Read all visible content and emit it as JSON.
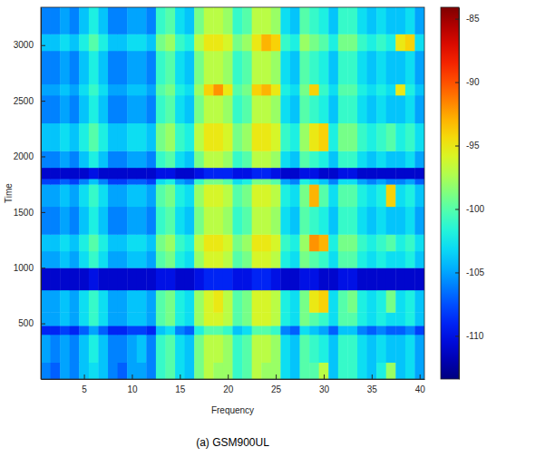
{
  "chart_data": {
    "type": "heatmap",
    "title": "(a) GSM900UL",
    "x_label": "Frequency",
    "y_label": "Time",
    "x": [
      1,
      2,
      3,
      4,
      5,
      6,
      7,
      8,
      9,
      10,
      11,
      12,
      13,
      14,
      15,
      16,
      17,
      18,
      19,
      20,
      21,
      22,
      23,
      24,
      25,
      26,
      27,
      28,
      29,
      30,
      31,
      32,
      33,
      34,
      35,
      36,
      37,
      38,
      39,
      40
    ],
    "time_bins": [
      0,
      150,
      400,
      480,
      600,
      800,
      1000,
      1150,
      1300,
      1550,
      1750,
      1800,
      1900,
      2050,
      2300,
      2550,
      2650,
      2950,
      3100,
      3340
    ],
    "xlim": [
      0.5,
      40.5
    ],
    "xticks": [
      5,
      10,
      15,
      20,
      25,
      30,
      35,
      40
    ],
    "ylim": [
      0,
      3340
    ],
    "yticks": [
      500,
      1000,
      1500,
      2000,
      2500,
      3000
    ],
    "color_range": [
      -113.4,
      -84.1
    ],
    "color_ticks": [
      -110,
      -105,
      -100,
      -95,
      -90,
      -85
    ],
    "values": [
      [
        -106,
        -107,
        -105,
        -106,
        -104,
        -103,
        -104,
        -106,
        -107,
        -105,
        -105,
        -106,
        -101,
        -100,
        -103,
        -104,
        -99,
        -97,
        -98,
        -98,
        -101,
        -100,
        -97,
        -98,
        -98,
        -103,
        -104,
        -100,
        -100,
        -97,
        -104,
        -101,
        -101,
        -103,
        -104,
        -102,
        -98,
        -104,
        -103,
        -105
      ],
      [
        -105,
        -106,
        -105,
        -106,
        -104,
        -102,
        -104,
        -106,
        -106,
        -105,
        -104,
        -106,
        -101,
        -100,
        -103,
        -104,
        -99,
        -97,
        -97,
        -98,
        -101,
        -100,
        -97,
        -97,
        -98,
        -103,
        -104,
        -100,
        -101,
        -102,
        -104,
        -101,
        -101,
        -103,
        -104,
        -103,
        -104,
        -104,
        -103,
        -105
      ],
      [
        -109,
        -109,
        -108,
        -109,
        -107,
        -105,
        -107,
        -109,
        -109,
        -108,
        -108,
        -109,
        -104,
        -103,
        -106,
        -107,
        -102,
        -100,
        -100,
        -101,
        -104,
        -103,
        -100,
        -100,
        -101,
        -106,
        -107,
        -103,
        -104,
        -105,
        -107,
        -104,
        -104,
        -106,
        -107,
        -106,
        -107,
        -107,
        -106,
        -108
      ],
      [
        -105,
        -105,
        -104,
        -105,
        -103,
        -101,
        -103,
        -105,
        -105,
        -104,
        -104,
        -105,
        -100,
        -99,
        -102,
        -103,
        -98,
        -96,
        -96,
        -97,
        -100,
        -99,
        -96,
        -96,
        -97,
        -102,
        -103,
        -99,
        -100,
        -101,
        -103,
        -100,
        -100,
        -102,
        -103,
        -102,
        -103,
        -103,
        -102,
        -104
      ],
      [
        -105,
        -105,
        -104,
        -105,
        -103,
        -101,
        -103,
        -105,
        -105,
        -104,
        -104,
        -105,
        -100,
        -99,
        -102,
        -103,
        -98,
        -96,
        -95,
        -97,
        -100,
        -99,
        -96,
        -96,
        -97,
        -102,
        -103,
        -99,
        -95,
        -94,
        -103,
        -100,
        -99,
        -102,
        -103,
        -102,
        -99,
        -103,
        -102,
        -104
      ],
      [
        -111,
        -111,
        -111,
        -111,
        -111,
        -110,
        -111,
        -111,
        -111,
        -111,
        -111,
        -111,
        -110,
        -110,
        -111,
        -111,
        -110,
        -109,
        -109,
        -109,
        -110,
        -110,
        -109,
        -109,
        -110,
        -111,
        -111,
        -110,
        -110,
        -111,
        -111,
        -110,
        -110,
        -111,
        -111,
        -111,
        -111,
        -111,
        -111,
        -111
      ],
      [
        -105,
        -105,
        -104,
        -105,
        -103,
        -101,
        -103,
        -105,
        -105,
        -104,
        -104,
        -105,
        -100,
        -99,
        -102,
        -103,
        -98,
        -96,
        -96,
        -97,
        -100,
        -99,
        -96,
        -96,
        -97,
        -102,
        -103,
        -99,
        -100,
        -101,
        -103,
        -100,
        -100,
        -102,
        -103,
        -102,
        -103,
        -103,
        -102,
        -104
      ],
      [
        -104,
        -104,
        -103,
        -104,
        -102,
        -100,
        -102,
        -104,
        -104,
        -103,
        -103,
        -104,
        -99,
        -98,
        -101,
        -102,
        -97,
        -95,
        -95,
        -96,
        -99,
        -98,
        -95,
        -95,
        -96,
        -101,
        -102,
        -98,
        -92,
        -93,
        -102,
        -99,
        -99,
        -101,
        -102,
        -101,
        -100,
        -102,
        -101,
        -103
      ],
      [
        -106,
        -106,
        -105,
        -106,
        -104,
        -102,
        -104,
        -106,
        -106,
        -105,
        -105,
        -106,
        -101,
        -100,
        -103,
        -104,
        -99,
        -97,
        -97,
        -98,
        -101,
        -100,
        -97,
        -97,
        -98,
        -103,
        -104,
        -100,
        -101,
        -102,
        -104,
        -101,
        -101,
        -103,
        -104,
        -103,
        -104,
        -104,
        -103,
        -105
      ],
      [
        -105,
        -105,
        -104,
        -105,
        -103,
        -101,
        -103,
        -105,
        -105,
        -104,
        -104,
        -105,
        -100,
        -99,
        -102,
        -103,
        -98,
        -96,
        -96,
        -97,
        -100,
        -99,
        -96,
        -96,
        -97,
        -102,
        -103,
        -99,
        -93,
        -100,
        -103,
        -100,
        -100,
        -102,
        -103,
        -102,
        -94,
        -103,
        -102,
        -104
      ],
      [
        -108,
        -108,
        -107,
        -108,
        -106,
        -104,
        -106,
        -108,
        -108,
        -107,
        -107,
        -108,
        -103,
        -102,
        -105,
        -106,
        -101,
        -99,
        -99,
        -100,
        -103,
        -102,
        -99,
        -99,
        -100,
        -105,
        -106,
        -102,
        -103,
        -104,
        -106,
        -103,
        -103,
        -105,
        -106,
        -105,
        -106,
        -106,
        -105,
        -107
      ],
      [
        -111,
        -111,
        -111,
        -111,
        -111,
        -110,
        -111,
        -111,
        -111,
        -111,
        -111,
        -111,
        -110,
        -110,
        -111,
        -111,
        -110,
        -109,
        -109,
        -109,
        -110,
        -110,
        -109,
        -109,
        -110,
        -111,
        -111,
        -110,
        -110,
        -111,
        -111,
        -110,
        -110,
        -111,
        -111,
        -111,
        -111,
        -111,
        -111,
        -111
      ],
      [
        -106,
        -106,
        -105,
        -106,
        -104,
        -102,
        -104,
        -106,
        -106,
        -105,
        -105,
        -106,
        -101,
        -100,
        -103,
        -104,
        -99,
        -97,
        -97,
        -98,
        -101,
        -100,
        -97,
        -97,
        -98,
        -103,
        -104,
        -100,
        -101,
        -102,
        -104,
        -101,
        -101,
        -103,
        -104,
        -103,
        -104,
        -104,
        -103,
        -105
      ],
      [
        -104,
        -104,
        -103,
        -104,
        -102,
        -100,
        -102,
        -104,
        -104,
        -103,
        -103,
        -104,
        -99,
        -98,
        -101,
        -102,
        -97,
        -95,
        -95,
        -96,
        -99,
        -98,
        -95,
        -95,
        -96,
        -101,
        -102,
        -98,
        -95,
        -94,
        -102,
        -99,
        -99,
        -101,
        -102,
        -101,
        -100,
        -102,
        -101,
        -103
      ],
      [
        -106,
        -106,
        -105,
        -106,
        -104,
        -102,
        -104,
        -106,
        -106,
        -105,
        -105,
        -106,
        -101,
        -100,
        -103,
        -104,
        -99,
        -97,
        -97,
        -98,
        -101,
        -100,
        -97,
        -97,
        -98,
        -103,
        -104,
        -100,
        -101,
        -102,
        -104,
        -101,
        -101,
        -103,
        -104,
        -103,
        -104,
        -104,
        -103,
        -105
      ],
      [
        -105,
        -105,
        -104,
        -105,
        -103,
        -101,
        -103,
        -105,
        -105,
        -104,
        -104,
        -105,
        -100,
        -99,
        -102,
        -103,
        -98,
        -94,
        -92,
        -95,
        -100,
        -99,
        -94,
        -93,
        -95,
        -102,
        -103,
        -99,
        -94,
        -101,
        -103,
        -100,
        -100,
        -102,
        -103,
        -102,
        -103,
        -95,
        -102,
        -104
      ],
      [
        -106,
        -106,
        -105,
        -106,
        -104,
        -102,
        -104,
        -106,
        -106,
        -105,
        -105,
        -106,
        -101,
        -100,
        -103,
        -104,
        -99,
        -97,
        -97,
        -98,
        -101,
        -100,
        -97,
        -97,
        -98,
        -103,
        -104,
        -100,
        -101,
        -102,
        -104,
        -101,
        -101,
        -103,
        -104,
        -103,
        -104,
        -104,
        -103,
        -105
      ],
      [
        -104,
        -104,
        -103,
        -104,
        -102,
        -100,
        -102,
        -104,
        -104,
        -103,
        -103,
        -104,
        -99,
        -98,
        -101,
        -102,
        -97,
        -95,
        -95,
        -96,
        -99,
        -98,
        -95,
        -93,
        -94,
        -101,
        -102,
        -98,
        -99,
        -100,
        -102,
        -99,
        -99,
        -101,
        -102,
        -101,
        -102,
        -95,
        -94,
        -103
      ],
      [
        -106,
        -106,
        -105,
        -106,
        -104,
        -102,
        -104,
        -106,
        -106,
        -105,
        -105,
        -106,
        -101,
        -100,
        -103,
        -104,
        -99,
        -97,
        -97,
        -98,
        -101,
        -100,
        -97,
        -97,
        -98,
        -103,
        -104,
        -100,
        -101,
        -102,
        -104,
        -101,
        -101,
        -103,
        -104,
        -103,
        -104,
        -104,
        -103,
        -105
      ]
    ]
  }
}
